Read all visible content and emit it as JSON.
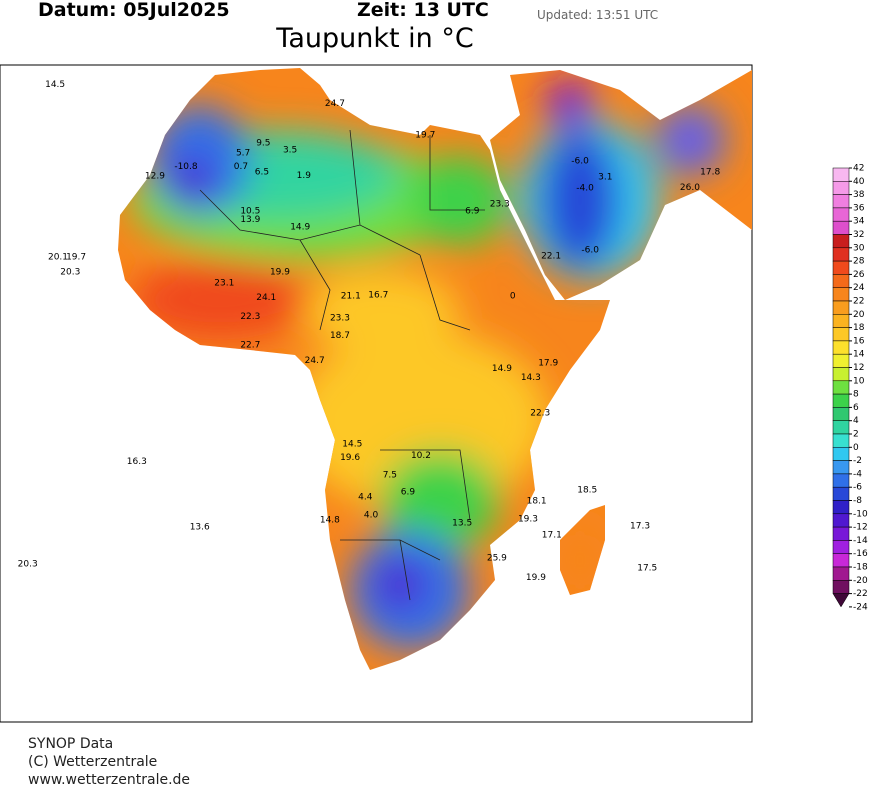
{
  "header": {
    "date": "Datum: 05Jul2025",
    "time": "Zeit: 13 UTC",
    "updated": "Updated: 13:51 UTC",
    "title": "Taupunkt in °C"
  },
  "footer": [
    "SYNOP Data",
    "(C) Wetterzentrale",
    "www.wetterzentrale.de"
  ],
  "colorbar": {
    "ticks": [
      42,
      40,
      38,
      36,
      34,
      32,
      30,
      28,
      26,
      24,
      22,
      20,
      18,
      16,
      14,
      12,
      10,
      8,
      6,
      4,
      2,
      0,
      -2,
      -4,
      -6,
      -8,
      -10,
      -12,
      -14,
      -16,
      -18,
      -20,
      -22,
      -24
    ],
    "colors": [
      "#f8b8f0",
      "#f59ae8",
      "#f07fe0",
      "#e866d6",
      "#de4fcc",
      "#c81e1e",
      "#e03020",
      "#f04a1c",
      "#f46a1a",
      "#f7851c",
      "#f99d1e",
      "#fbb320",
      "#fdc826",
      "#fde02c",
      "#f0f030",
      "#c8f030",
      "#6ee040",
      "#3cd24a",
      "#30c870",
      "#30d4a0",
      "#38e0d0",
      "#30c8f0",
      "#3898f0",
      "#3070e8",
      "#2848d8",
      "#3020c8",
      "#5018d0",
      "#7818d8",
      "#a020e0",
      "#c828d8",
      "#a01890",
      "#701060",
      "#400838"
    ]
  },
  "stations": [
    {
      "lon": -26.4,
      "lat": 36.2,
      "value": 14.5
    },
    {
      "lon": -26.0,
      "lat": 14.4,
      "value": 20.1
    },
    {
      "lon": -23.5,
      "lat": 14.4,
      "value": 19.7
    },
    {
      "lon": -24.3,
      "lat": 12.5,
      "value": 20.3
    },
    {
      "lon": -15.1,
      "lat": -11.4,
      "value": 16.3
    },
    {
      "lon": -6.4,
      "lat": -19.7,
      "value": 13.6
    },
    {
      "lon": -30.2,
      "lat": -24.4,
      "value": 20.3
    },
    {
      "lon": -12.6,
      "lat": 24.6,
      "value": 12.9
    },
    {
      "lon": -8.3,
      "lat": 25.8,
      "value": -10.8
    },
    {
      "lon": 12.3,
      "lat": 33.8,
      "value": 24.7
    },
    {
      "lon": 24.8,
      "lat": 29.8,
      "value": 19.7
    },
    {
      "lon": 7.5,
      "lat": 18.2,
      "value": 14.9
    },
    {
      "lon": 4.7,
      "lat": 12.5,
      "value": 19.9
    },
    {
      "lon": 18.3,
      "lat": 9.6,
      "value": 16.7
    },
    {
      "lon": 0.6,
      "lat": 3.3,
      "value": 22.7
    },
    {
      "lon": 9.5,
      "lat": 1.3,
      "value": 24.7
    },
    {
      "lon": 13.0,
      "lat": 4.5,
      "value": 18.7
    },
    {
      "lon": 14.7,
      "lat": -9.2,
      "value": 14.5
    },
    {
      "lon": 14.4,
      "lat": -10.9,
      "value": 19.6
    },
    {
      "lon": 24.2,
      "lat": -10.7,
      "value": 10.2
    },
    {
      "lon": 19.9,
      "lat": -13.1,
      "value": 7.5
    },
    {
      "lon": 16.5,
      "lat": -15.9,
      "value": 4.4
    },
    {
      "lon": 22.4,
      "lat": -15.3,
      "value": 6.9
    },
    {
      "lon": 17.3,
      "lat": -18.2,
      "value": 4.0,
      "label": "4.0"
    },
    {
      "lon": 11.6,
      "lat": -18.8,
      "value": 14.8
    },
    {
      "lon": 40.2,
      "lat": -16.4,
      "value": 18.1
    },
    {
      "lon": 39.0,
      "lat": -18.7,
      "value": 19.3
    },
    {
      "lon": 42.3,
      "lat": -20.7,
      "value": 17.1
    },
    {
      "lon": 47.2,
      "lat": -15.0,
      "value": 18.5
    },
    {
      "lon": 54.5,
      "lat": -19.6,
      "value": 17.3
    },
    {
      "lon": 55.5,
      "lat": -24.9,
      "value": 17.5
    },
    {
      "lon": 40.1,
      "lat": -26.1,
      "value": 19.9
    },
    {
      "lon": 34.7,
      "lat": -23.6,
      "value": 25.9
    },
    {
      "lon": 29.9,
      "lat": -19.2,
      "value": 13.5
    },
    {
      "lon": 35.4,
      "lat": 0.3,
      "value": 14.9
    },
    {
      "lon": 41.8,
      "lat": 1.0,
      "value": 17.9
    },
    {
      "lon": 39.4,
      "lat": -0.8,
      "value": 14.3
    },
    {
      "lon": 40.7,
      "lat": -5.3,
      "value": 22.3
    },
    {
      "lon": 35.1,
      "lat": 21.1,
      "value": 23.3
    },
    {
      "lon": 31.3,
      "lat": 20.2,
      "value": 6.9
    },
    {
      "lon": 46.2,
      "lat": 26.5,
      "value": -6,
      "label": "-6.0"
    },
    {
      "lon": 46.9,
      "lat": 23.1,
      "value": -4,
      "label": "-4.0"
    },
    {
      "lon": 49.7,
      "lat": 24.5,
      "value": 3.1
    },
    {
      "lon": 42.2,
      "lat": 14.5,
      "value": 22.1
    },
    {
      "lon": 47.6,
      "lat": 15.3,
      "value": -6,
      "label": "-6.0"
    },
    {
      "lon": 64.2,
      "lat": 25.1,
      "value": 17.8
    },
    {
      "lon": 61.4,
      "lat": 23.2,
      "value": 26.0,
      "label": "26.0"
    },
    {
      "lon": -0.7,
      "lat": 25.8,
      "value": 0.7
    },
    {
      "lon": 2.2,
      "lat": 25.1,
      "value": 6.5
    },
    {
      "lon": -0.4,
      "lat": 27.5,
      "value": 5.7
    },
    {
      "lon": 2.4,
      "lat": 28.8,
      "value": 9.5
    },
    {
      "lon": 6.1,
      "lat": 27.9,
      "value": 3.5
    },
    {
      "lon": 8.0,
      "lat": 24.7,
      "value": 1.9
    },
    {
      "lon": 0.6,
      "lat": 20.2,
      "value": 10.5
    },
    {
      "lon": 0.6,
      "lat": 19.1,
      "value": 13.9
    },
    {
      "lon": -3.0,
      "lat": 11.1,
      "value": 23.1
    },
    {
      "lon": 2.8,
      "lat": 9.3,
      "value": 24.1
    },
    {
      "lon": 0.6,
      "lat": 6.9,
      "value": 22.3
    },
    {
      "lon": 14.5,
      "lat": 9.5,
      "value": 21.1
    },
    {
      "lon": 13.0,
      "lat": 6.7,
      "value": 23.3
    },
    {
      "lon": 36.9,
      "lat": 9.5,
      "value": 0
    }
  ]
}
